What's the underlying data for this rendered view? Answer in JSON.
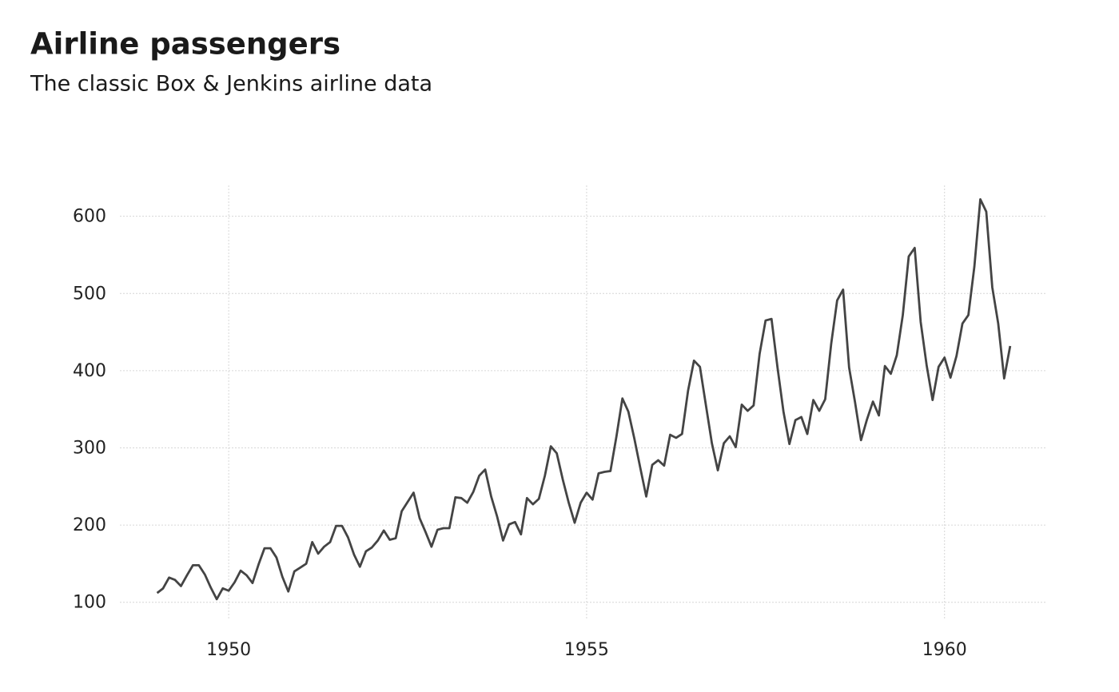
{
  "chart_data": {
    "type": "line",
    "title": "Airline passengers",
    "subtitle": "The classic Box & Jenkins airline data",
    "x": [
      1949,
      1949.083,
      1949.167,
      1949.25,
      1949.333,
      1949.417,
      1949.5,
      1949.583,
      1949.667,
      1949.75,
      1949.833,
      1949.917,
      1950,
      1950.083,
      1950.167,
      1950.25,
      1950.333,
      1950.417,
      1950.5,
      1950.583,
      1950.667,
      1950.75,
      1950.833,
      1950.917,
      1951,
      1951.083,
      1951.167,
      1951.25,
      1951.333,
      1951.417,
      1951.5,
      1951.583,
      1951.667,
      1951.75,
      1951.833,
      1951.917,
      1952,
      1952.083,
      1952.167,
      1952.25,
      1952.333,
      1952.417,
      1952.5,
      1952.583,
      1952.667,
      1952.75,
      1952.833,
      1952.917,
      1953,
      1953.083,
      1953.167,
      1953.25,
      1953.333,
      1953.417,
      1953.5,
      1953.583,
      1953.667,
      1953.75,
      1953.833,
      1953.917,
      1954,
      1954.083,
      1954.167,
      1954.25,
      1954.333,
      1954.417,
      1954.5,
      1954.583,
      1954.667,
      1954.75,
      1954.833,
      1954.917,
      1955,
      1955.083,
      1955.167,
      1955.25,
      1955.333,
      1955.417,
      1955.5,
      1955.583,
      1955.667,
      1955.75,
      1955.833,
      1955.917,
      1956,
      1956.083,
      1956.167,
      1956.25,
      1956.333,
      1956.417,
      1956.5,
      1956.583,
      1956.667,
      1956.75,
      1956.833,
      1956.917,
      1957,
      1957.083,
      1957.167,
      1957.25,
      1957.333,
      1957.417,
      1957.5,
      1957.583,
      1957.667,
      1957.75,
      1957.833,
      1957.917,
      1958,
      1958.083,
      1958.167,
      1958.25,
      1958.333,
      1958.417,
      1958.5,
      1958.583,
      1958.667,
      1958.75,
      1958.833,
      1958.917,
      1959,
      1959.083,
      1959.167,
      1959.25,
      1959.333,
      1959.417,
      1959.5,
      1959.583,
      1959.667,
      1959.75,
      1959.833,
      1959.917,
      1960,
      1960.083,
      1960.167,
      1960.25,
      1960.333,
      1960.417,
      1960.5,
      1960.583,
      1960.667,
      1960.75,
      1960.833,
      1960.917
    ],
    "values": [
      112,
      118,
      132,
      129,
      121,
      135,
      148,
      148,
      136,
      119,
      104,
      118,
      115,
      126,
      141,
      135,
      125,
      149,
      170,
      170,
      158,
      133,
      114,
      140,
      145,
      150,
      178,
      163,
      172,
      178,
      199,
      199,
      184,
      162,
      146,
      166,
      171,
      180,
      193,
      181,
      183,
      218,
      230,
      242,
      209,
      191,
      172,
      194,
      196,
      196,
      236,
      235,
      229,
      243,
      264,
      272,
      237,
      211,
      180,
      201,
      204,
      188,
      235,
      227,
      234,
      264,
      302,
      293,
      259,
      229,
      203,
      229,
      242,
      233,
      267,
      269,
      270,
      315,
      364,
      347,
      312,
      274,
      237,
      278,
      284,
      277,
      317,
      313,
      318,
      374,
      413,
      405,
      355,
      306,
      271,
      306,
      315,
      301,
      356,
      348,
      355,
      422,
      465,
      467,
      404,
      347,
      305,
      336,
      340,
      318,
      362,
      348,
      363,
      435,
      491,
      505,
      404,
      359,
      310,
      337,
      360,
      342,
      406,
      396,
      420,
      472,
      548,
      559,
      463,
      407,
      362,
      405,
      417,
      391,
      419,
      461,
      472,
      535,
      622,
      606,
      508,
      461,
      390,
      432
    ],
    "color": "#444444",
    "xlim": [
      1948.48,
      1961.41
    ],
    "xticks": [
      1950,
      1955,
      1960
    ],
    "ylim": [
      78,
      640
    ],
    "yticks": [
      100,
      200,
      300,
      400,
      500,
      600
    ],
    "grid": true
  }
}
